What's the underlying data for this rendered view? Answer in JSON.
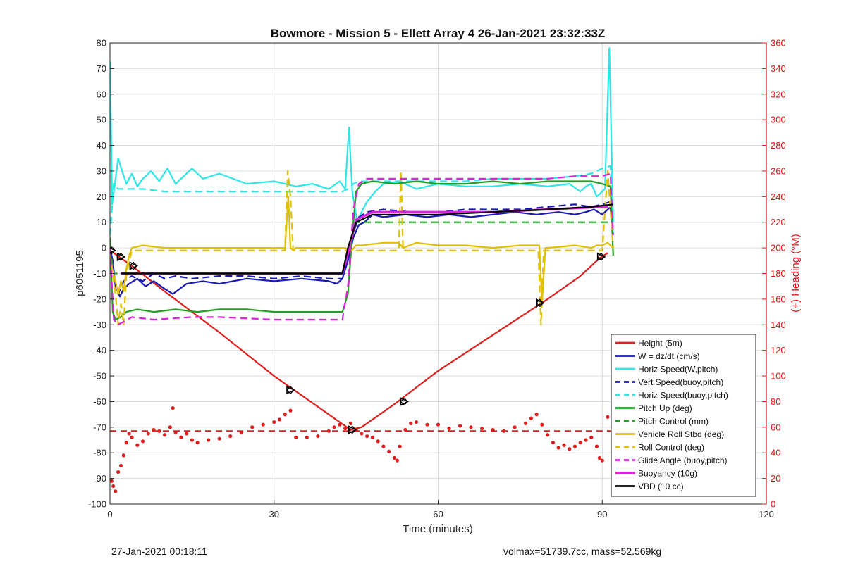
{
  "chart_data": {
    "type": "line",
    "title": "Bowmore - Mission 5 - Ellett Array 4 26-Jan-2021 23:32:33Z",
    "xlabel": "Time (minutes)",
    "ylabel_left": "p6051195",
    "ylabel_right": "(+) Heading (°M)",
    "xlim": [
      0,
      120
    ],
    "ylim_left": [
      -100,
      80
    ],
    "ylim_right": [
      0,
      360
    ],
    "xticks": [
      0,
      30,
      60,
      90,
      120
    ],
    "yticks_left": [
      80,
      70,
      60,
      50,
      40,
      30,
      20,
      10,
      0,
      -10,
      -20,
      -30,
      -40,
      -50,
      -60,
      -70,
      -80,
      -90,
      -100
    ],
    "yticks_right": [
      360,
      340,
      320,
      300,
      280,
      260,
      240,
      220,
      200,
      180,
      160,
      140,
      120,
      100,
      80,
      60,
      40,
      20,
      0
    ],
    "grid": true,
    "legend_position": "bottom-right",
    "colors": {
      "axes": "#262626",
      "right_axis": "#e01010",
      "grid": "#dcdcdc"
    },
    "series": [
      {
        "name": "Height (5m)",
        "color": "#dd1f1f",
        "style": "solid",
        "width": 2.2,
        "x": [
          0,
          4,
          10,
          20,
          30,
          38,
          42,
          44,
          46,
          52,
          60,
          70,
          80,
          86,
          89.5,
          91
        ],
        "y": [
          -1,
          -7,
          -17,
          -33,
          -50,
          -62,
          -68,
          -71,
          -70,
          -61,
          -48,
          -34,
          -20,
          -11,
          -4,
          -2
        ]
      },
      {
        "name": "W = dz/dt (cm/s)",
        "color": "#1a1ab5",
        "style": "solid",
        "width": 2.2,
        "x": [
          0,
          0.5,
          1,
          1.8,
          2.5,
          3.5,
          5,
          6.5,
          8,
          10,
          11.5,
          14,
          17,
          20,
          25,
          30,
          35,
          40,
          41.5,
          42.5,
          43.5,
          44.5,
          45.5,
          46.5,
          48,
          50,
          54,
          58,
          62,
          66,
          70,
          74,
          78,
          82,
          85,
          87,
          88.5,
          90,
          91.5,
          92
        ],
        "y": [
          0,
          -5,
          -15,
          -19,
          -16,
          -14,
          -12,
          -15,
          -13,
          -16,
          -18,
          -14,
          -13,
          -14,
          -12,
          -13,
          -12,
          -13,
          -14,
          -12,
          -5,
          4,
          9,
          10,
          13,
          12,
          13,
          12,
          13,
          12,
          13,
          14,
          13,
          14,
          13,
          14,
          15,
          13,
          16,
          5
        ]
      },
      {
        "name": "Horiz Speed(W,pitch)",
        "color": "#2ee6e6",
        "style": "solid",
        "width": 2.2,
        "x": [
          0,
          0.4,
          0.9,
          1.5,
          2.2,
          3,
          4,
          5,
          6,
          7.5,
          9,
          10.5,
          12,
          13.5,
          15,
          17,
          20,
          25,
          30,
          34,
          37,
          40,
          42,
          43,
          43.7,
          44.3,
          45.2,
          46,
          47,
          48.5,
          50,
          53,
          56,
          60,
          65,
          70,
          75,
          80,
          84,
          86,
          87,
          88,
          89,
          90.5,
          91.3,
          92
        ],
        "y": [
          73,
          17,
          25,
          35,
          30,
          25,
          29,
          24,
          27,
          30,
          26,
          31,
          25,
          28,
          31,
          27,
          29,
          25,
          26,
          24,
          25,
          23,
          26,
          23,
          47,
          22,
          10,
          14,
          18,
          22,
          25,
          26,
          23,
          25,
          24,
          24,
          25,
          24,
          25,
          22,
          24,
          25,
          20,
          23,
          78,
          10
        ]
      },
      {
        "name": "Vert Speed(buoy,pitch)",
        "color": "#1a1ab5",
        "style": "dashed",
        "width": 2.2,
        "x": [
          0,
          0.5,
          1,
          1.5,
          2.5,
          4,
          6,
          8,
          10,
          12,
          15,
          20,
          25,
          30,
          35,
          40,
          42.5,
          43.5,
          44.5,
          45.5,
          47,
          50,
          55,
          60,
          65,
          70,
          75,
          80,
          85,
          88,
          90,
          91.5,
          92
        ],
        "y": [
          0,
          -8,
          -14,
          -18,
          -13,
          -11,
          -13,
          -10,
          -12,
          -11,
          -12,
          -11,
          -11,
          -12,
          -11,
          -12,
          -12,
          -5,
          6,
          12,
          14,
          15,
          14,
          14,
          15,
          15,
          15,
          16,
          17,
          16,
          17,
          18,
          5
        ]
      },
      {
        "name": "Horiz Speed(buoy,pitch)",
        "color": "#2ee6e6",
        "style": "dashed",
        "width": 2.2,
        "x": [
          0,
          0.7,
          1.5,
          3,
          6,
          10,
          15,
          20,
          25,
          30,
          35,
          40,
          42.5,
          43.5,
          44.5,
          45.5,
          47,
          50,
          55,
          60,
          65,
          70,
          75,
          80,
          85,
          88,
          90,
          91.5,
          92
        ],
        "y": [
          5,
          25,
          23,
          23,
          23,
          22,
          22,
          22,
          22,
          22,
          22,
          22,
          22,
          23,
          25,
          26,
          26,
          26,
          26,
          26,
          26,
          27,
          27,
          27,
          28,
          29,
          31,
          32,
          5
        ]
      },
      {
        "name": "Pitch Up (deg)",
        "color": "#22a022",
        "style": "solid",
        "width": 2.2,
        "x": [
          0,
          0.5,
          1,
          2,
          3,
          5,
          8,
          12,
          16,
          20,
          25,
          30,
          35,
          40,
          42.5,
          43.5,
          44.3,
          45,
          46,
          48,
          52,
          56,
          60,
          65,
          70,
          75,
          80,
          85,
          88,
          90,
          91.5,
          92
        ],
        "y": [
          4,
          -25,
          -28,
          -27,
          -25,
          -24,
          -25,
          -24,
          -25,
          -24,
          -24,
          -25,
          -25,
          -25,
          -25,
          -18,
          5,
          22,
          25,
          26,
          25,
          26,
          25,
          25,
          26,
          25,
          26,
          26,
          26,
          25,
          24,
          -3
        ]
      },
      {
        "name": "Pitch Control (mm)",
        "color": "#22a022",
        "style": "dashed",
        "width": 2.2,
        "x": [
          0,
          0.7,
          42.6,
          43.4,
          45,
          92
        ],
        "y": [
          0,
          -10,
          -10,
          -3,
          10,
          10
        ]
      },
      {
        "name": "Vehicle Roll Stbd (deg)",
        "color": "#e0c000",
        "style": "solid",
        "width": 2.2,
        "x": [
          0,
          1,
          1.5,
          2,
          2.5,
          3,
          3.5,
          4,
          6,
          10,
          15,
          20,
          25,
          30,
          32,
          32.6,
          33,
          33.5,
          34,
          38,
          42,
          43,
          44.2,
          45,
          46,
          50,
          52.8,
          53.2,
          53.6,
          56,
          60,
          65,
          70,
          75,
          78.5,
          79,
          79.6,
          80,
          85,
          88,
          89,
          90,
          91,
          92
        ],
        "y": [
          -5,
          -13,
          -18,
          -13,
          -17,
          -8,
          -3,
          0,
          1,
          0,
          0,
          0,
          0,
          0,
          0,
          20,
          0,
          -1,
          0,
          0,
          0,
          0,
          -1,
          1,
          1,
          2,
          2,
          1,
          0,
          2,
          1,
          1,
          0,
          1,
          1,
          -21,
          0,
          0,
          1,
          0,
          1,
          1,
          2,
          0
        ]
      },
      {
        "name": "Roll Control (deg)",
        "color": "#e0c000",
        "style": "dashed",
        "width": 2.2,
        "x": [
          0,
          1,
          1.5,
          2,
          2.5,
          3,
          4,
          32,
          32.5,
          33,
          33.5,
          34,
          50,
          52.8,
          53.2,
          53.6,
          78.3,
          78.8,
          79.3,
          90,
          91,
          92
        ],
        "y": [
          -2,
          -18,
          -30,
          -22,
          -30,
          -10,
          -1,
          -1,
          30,
          20,
          -1,
          -1,
          -1,
          -1,
          30,
          -1,
          -1,
          -30,
          -1,
          -1,
          30,
          0
        ]
      },
      {
        "name": "Glide Angle (buoy,pitch)",
        "color": "#dd22dd",
        "style": "dashed",
        "width": 2.2,
        "x": [
          0,
          0.7,
          1.5,
          4,
          8,
          15,
          20,
          30,
          40,
          42.5,
          43.5,
          44.5,
          45.5,
          47,
          55,
          60,
          70,
          80,
          85,
          88,
          90,
          91.5,
          92
        ],
        "y": [
          0,
          -28,
          -30,
          -27,
          -28,
          -27,
          -27,
          -28,
          -28,
          -28,
          -15,
          15,
          25,
          27,
          27,
          27,
          27,
          27,
          28,
          28,
          28,
          29,
          5
        ]
      },
      {
        "name": "Buoyancy (10g)",
        "color": "#dd22dd",
        "style": "solid",
        "width": 3.2,
        "x": [
          2,
          42.5,
          43.5,
          45,
          48,
          60,
          70,
          80,
          90,
          91
        ],
        "y": [
          -10,
          -10,
          -2,
          11,
          14,
          14,
          14,
          15,
          16,
          16
        ]
      },
      {
        "name": "VBD (10 cc)",
        "color": "#000000",
        "style": "solid",
        "width": 2.2,
        "x": [
          2,
          42.5,
          43.5,
          45,
          48,
          60,
          70,
          80,
          88,
          92
        ],
        "y": [
          -10,
          -10,
          0,
          10,
          13,
          13,
          14,
          15,
          16,
          17
        ]
      }
    ],
    "markers": {
      "name": "Height markers",
      "x": [
        0.3,
        2,
        4.3,
        33,
        44.3,
        53.8,
        78.6,
        89.8
      ],
      "y": [
        -1,
        -3.5,
        -7,
        -55.5,
        -71,
        -60,
        -21.5,
        -3.5
      ]
    },
    "heading": {
      "name": "Heading",
      "axis": "right",
      "color": "#dd1f1f",
      "target": 57,
      "target_style": "dashed",
      "x": [
        0.3,
        0.6,
        1,
        1.5,
        2,
        2.5,
        3,
        3.5,
        4,
        5,
        6,
        7,
        8,
        9,
        10,
        11,
        11.5,
        12,
        13,
        14,
        15,
        16,
        18,
        20,
        22,
        24,
        26,
        28,
        30,
        31,
        32,
        33,
        34,
        36,
        38,
        40,
        41,
        42,
        43,
        44,
        45,
        46,
        47,
        48,
        49,
        50,
        51,
        52,
        52.5,
        53,
        54,
        55,
        56,
        58,
        60,
        62,
        64,
        66,
        68,
        70,
        72,
        74,
        76,
        77,
        78,
        79,
        80,
        81,
        82,
        83,
        84,
        85,
        86,
        87,
        88,
        89,
        89.5,
        90,
        91,
        92
      ],
      "y": [
        18,
        14,
        10,
        25,
        30,
        38,
        48,
        55,
        52,
        46,
        49,
        55,
        58,
        57,
        54,
        60,
        75,
        56,
        52,
        55,
        50,
        48,
        50,
        51,
        53,
        56,
        60,
        62,
        64,
        66,
        70,
        73,
        52,
        52,
        53,
        57,
        60,
        62,
        59,
        63,
        58,
        55,
        53,
        52,
        49,
        45,
        41,
        36,
        34,
        45,
        58,
        63,
        64,
        62,
        62,
        59,
        61,
        60,
        59,
        58,
        57,
        60,
        63,
        67,
        70,
        62,
        54,
        48,
        44,
        46,
        43,
        45,
        48,
        50,
        52,
        45,
        36,
        34,
        68,
        42
      ]
    }
  },
  "footer": {
    "left": "27-Jan-2021 00:18:11",
    "right": "volmax=51739.7cc, mass=52.569kg"
  }
}
